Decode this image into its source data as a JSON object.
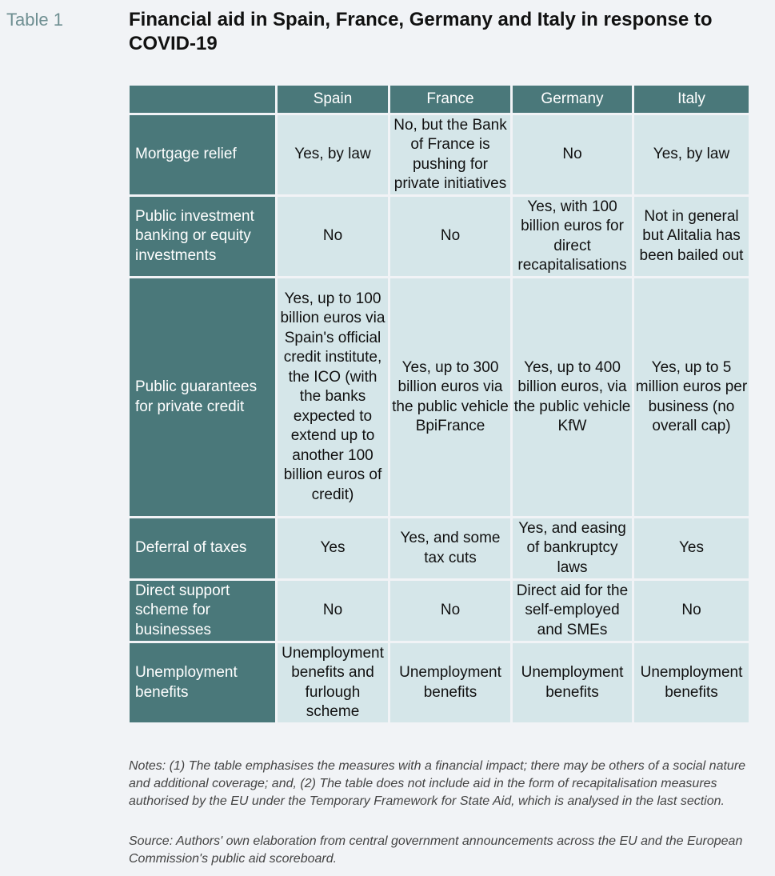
{
  "table_label": "Table 1",
  "title": "Financial aid in Spain, France, Germany and Italy in response to COVID-19",
  "columns": [
    "",
    "Spain",
    "France",
    "Germany",
    "Italy"
  ],
  "rows": [
    {
      "label": "Mortgage relief",
      "cells": [
        "Yes, by law",
        "No, but the Bank of France is pushing for private initiatives",
        "No",
        "Yes, by law"
      ]
    },
    {
      "label": "Public investment banking or equity investments",
      "cells": [
        "No",
        "No",
        "Yes, with 100 billion euros for direct recapitalisations",
        "Not in general but Alitalia has been bailed out"
      ]
    },
    {
      "label": "Public guarantees for private credit",
      "cells": [
        "Yes, up to 100 billion euros via Spain's official credit institute,  the ICO (with the banks expected to extend up to another 100 billion euros of credit)",
        "Yes, up to 300 billion euros via the public vehicle BpiFrance",
        "Yes, up to 400 billion euros, via the public vehicle KfW",
        "Yes, up to 5 million euros per business (no overall cap)"
      ]
    },
    {
      "label": "Deferral of taxes",
      "cells": [
        "Yes",
        "Yes, and some tax cuts",
        "Yes, and easing of bankruptcy laws",
        "Yes"
      ]
    },
    {
      "label": "Direct support scheme for businesses",
      "cells": [
        "No",
        "No",
        "Direct aid for the self-employed and SMEs",
        "No"
      ]
    },
    {
      "label": "Unemployment benefits",
      "cells": [
        "Unemployment benefits and furlough scheme",
        "Unemployment benefits",
        "Unemployment benefits",
        "Unemployment benefits"
      ]
    }
  ],
  "notes": "Notes: (1) The table emphasises the measures with a financial impact; there may be others of a social nature and additional coverage; and, (2) The table does not include aid in the form of recapitalisation measures authorised by the EU under the Temporary Framework for State Aid, which is analysed in the last section.",
  "source": "Source: Authors' own elaboration from central government announcements across the EU and the European Commission's public aid scoreboard.",
  "colors": {
    "header_bg": "#4a787a",
    "cell_bg": "#d5e6e9",
    "label_color": "#6f8f92",
    "page_bg": "#f1f3f6"
  }
}
